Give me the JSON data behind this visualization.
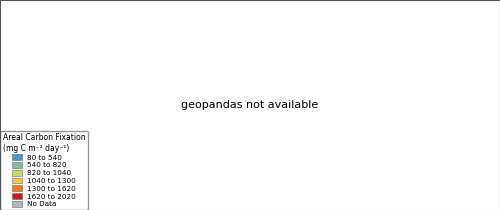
{
  "legend_title_line1": "Areal Carbon Fixation",
  "legend_title_line2": "(mg C m⁻² day⁻¹)",
  "legend_labels": [
    "80 to 540",
    "540 to 820",
    "820 to 1040",
    "1040 to 1300",
    "1300 to 1620",
    "1620 to 2020",
    "No Data"
  ],
  "legend_colors": [
    "#4e96c8",
    "#7fbfaa",
    "#c8d96e",
    "#f5c832",
    "#f07820",
    "#cc1a1a",
    "#b4b4b4"
  ],
  "ocean_color": "#ddeeff",
  "background_color": "#ffffff",
  "figsize": [
    5.0,
    2.1
  ],
  "dpi": 100,
  "legend_fontsize": 5.2,
  "legend_title_fontsize": 5.5,
  "country_color_map": {
    "Canada": 0,
    "Russia": 0,
    "Greenland": 0,
    "Norway": 0,
    "Iceland": 0,
    "Mongolia": 0,
    "Kazakhstan": 0,
    "Kyrgyzstan": 0,
    "Tajikistan": 0,
    "Turkmenistan": 0,
    "Uzbekistan": 0,
    "Alaska": 0,
    "Sweden": 1,
    "Finland": 1,
    "Belarus": 1,
    "Ukraine": 2,
    "Poland": 1,
    "Germany": 1,
    "France": 2,
    "Spain": 2,
    "United Kingdom": 1,
    "Ireland": 1,
    "Romania": 2,
    "Czech Republic": 1,
    "Slovakia": 1,
    "Hungary": 2,
    "Austria": 1,
    "Switzerland": 1,
    "Belgium": 1,
    "Netherlands": 1,
    "Denmark": 1,
    "Estonia": 1,
    "Latvia": 1,
    "Lithuania": 1,
    "Portugal": 2,
    "Italy": 2,
    "Greece": 2,
    "Bulgaria": 2,
    "Serbia": 2,
    "Croatia": 2,
    "Bosnia and Herzegovina": 2,
    "Slovenia": 1,
    "Albania": 2,
    "North Macedonia": 2,
    "Kosovo": 2,
    "Montenegro": 2,
    "Moldova": 2,
    "Armenia": 2,
    "Georgia": 2,
    "Azerbaijan": 2,
    "United States of America": 1,
    "China": 2,
    "Japan": 1,
    "South Korea": 2,
    "North Korea": 2,
    "Taiwan": 2,
    "Mexico": 3,
    "Brazil": 3,
    "Colombia": 4,
    "Venezuela": 4,
    "Peru": 2,
    "Bolivia": 3,
    "Argentina": 2,
    "Chile": 1,
    "Paraguay": 3,
    "Uruguay": 2,
    "Ecuador": 3,
    "Guyana": 3,
    "Suriname": 3,
    "French Guiana": 3,
    "Panama": 3,
    "Costa Rica": 3,
    "Nicaragua": 3,
    "Honduras": 3,
    "Guatemala": 3,
    "Belize": 3,
    "El Salvador": 3,
    "Cuba": 3,
    "Haiti": 3,
    "Dominican Republic": 3,
    "Jamaica": 3,
    "Nigeria": 4,
    "Cameroon": 5,
    "Republic of the Congo": 5,
    "Democratic Republic of the Congo": 5,
    "Central African Republic": 5,
    "Gabon": 4,
    "Uganda": 5,
    "Kenya": 4,
    "Tanzania": 4,
    "Mozambique": 3,
    "Zambia": 4,
    "Zimbabwe": 3,
    "South Africa": 3,
    "Namibia": 3,
    "Botswana": 3,
    "Angola": 4,
    "Ethiopia": 4,
    "Sudan": 6,
    "South Sudan": 4,
    "Chad": 6,
    "Niger": 6,
    "Mali": 6,
    "Mauritania": 6,
    "Algeria": 6,
    "Libya": 6,
    "Egypt": 6,
    "Morocco": 3,
    "Tunisia": 3,
    "Senegal": 3,
    "Guinea": 4,
    "Sierra Leone": 4,
    "Liberia": 4,
    "Ivory Coast": 4,
    "Ghana": 4,
    "Togo": 4,
    "Benin": 4,
    "Burkina Faso": 3,
    "Guinea-Bissau": 4,
    "Gambia": 3,
    "Cape Verde": 6,
    "Equatorial Guinea": 4,
    "Sao Tome and Principe": 4,
    "Burundi": 5,
    "Rwanda": 5,
    "Malawi": 4,
    "Madagascar": 3,
    "Djibouti": 6,
    "Eritrea": 6,
    "Somalia": 6,
    "Lesotho": 3,
    "Swaziland": 3,
    "eSwatini": 3,
    "Comoros": 4,
    "Saudi Arabia": 6,
    "Iraq": 6,
    "Iran": 3,
    "Syria": 6,
    "Turkey": 3,
    "Afghanistan": 6,
    "Pakistan": 3,
    "Jordan": 6,
    "Israel": 6,
    "Lebanon": 2,
    "Palestine": 6,
    "Kuwait": 6,
    "Bahrain": 6,
    "Qatar": 6,
    "United Arab Emirates": 6,
    "Oman": 6,
    "Yemen": 6,
    "India": 4,
    "Bangladesh": 4,
    "Myanmar": 4,
    "Thailand": 4,
    "Vietnam": 4,
    "Laos": 4,
    "Cambodia": 4,
    "Malaysia": 4,
    "Indonesia": 4,
    "Philippines": 5,
    "Papua New Guinea": 4,
    "Sri Lanka": 4,
    "Nepal": 3,
    "Bhutan": 3,
    "Tibet": 0,
    "Australia": 3,
    "New Zealand": 1,
    "Timor-Leste": 4,
    "Brunei": 4,
    "Fiji": 4,
    "Solomon Islands": 4,
    "Vanuatu": 4,
    "Western Sahara": 6,
    "Canary Islands": 3
  },
  "map_extent": [
    -180,
    180,
    -58,
    85
  ]
}
